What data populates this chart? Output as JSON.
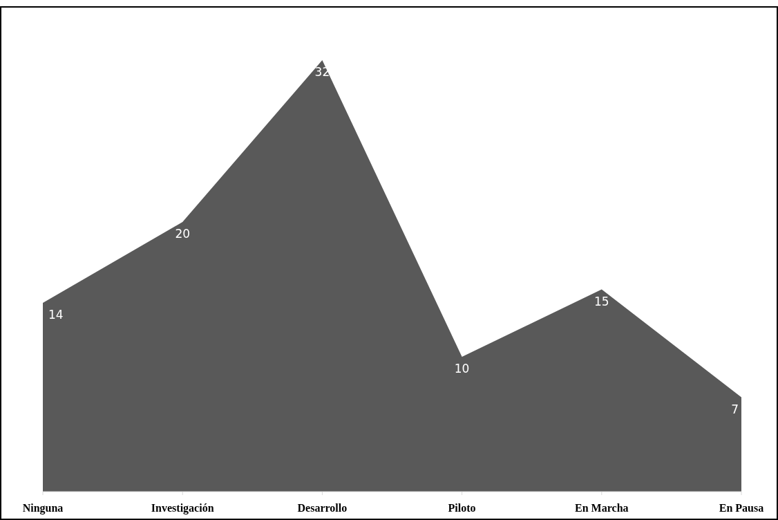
{
  "chart_data": {
    "type": "area",
    "categories": [
      "Ninguna",
      "Investigación",
      "Desarrollo",
      "Piloto",
      "En Marcha",
      "En Pausa"
    ],
    "values": [
      14,
      20,
      32,
      10,
      15,
      7
    ],
    "color": "#595959",
    "tick_labels": "x",
    "data_labels": true
  }
}
